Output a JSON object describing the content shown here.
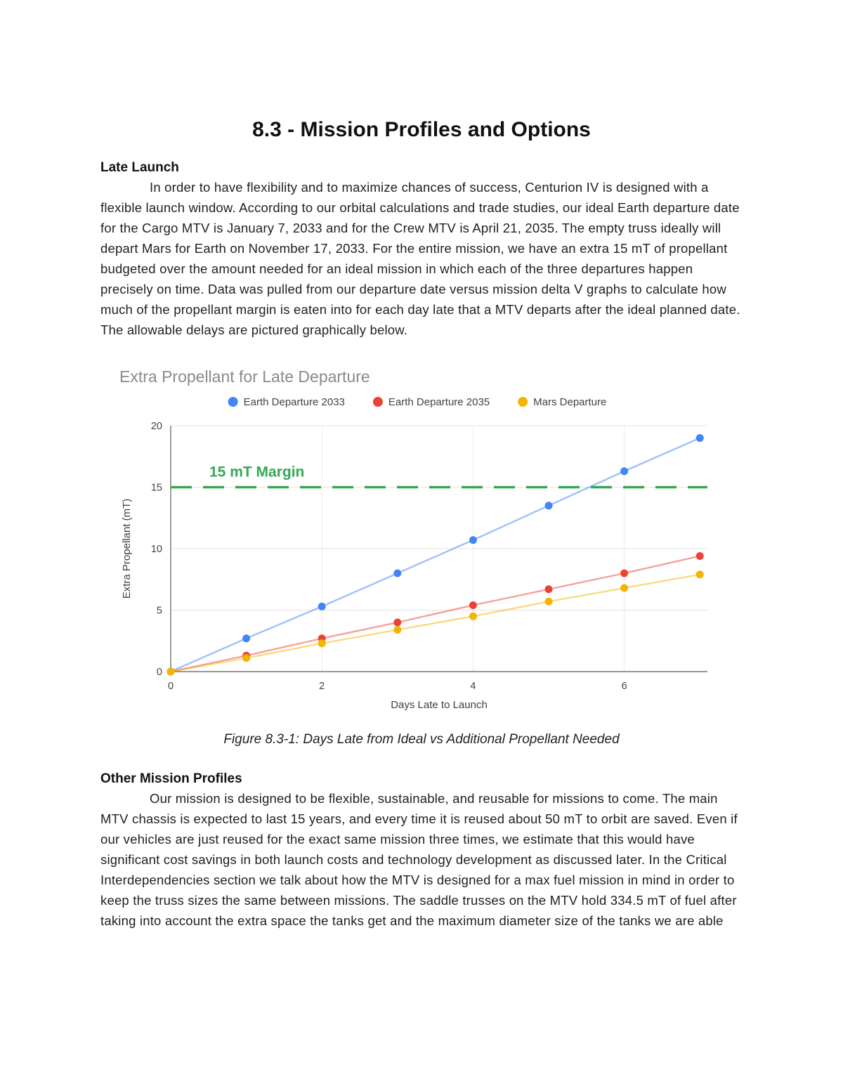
{
  "title": "8.3 - Mission Profiles and Options",
  "late_launch": {
    "heading": "Late Launch",
    "body": "In order to have flexibility and to maximize chances of success, Centurion IV is designed with a flexible launch window. According to our orbital calculations and trade studies, our ideal Earth departure date for the Cargo MTV is January 7, 2033 and for the Crew MTV is April 21, 2035. The empty truss ideally will depart Mars for Earth on November 17, 2033. For the entire mission, we have an extra 15 mT of propellant budgeted over the amount needed for an ideal mission in which each of the three departures happen precisely on time. Data was pulled from our departure date versus mission delta V graphs to calculate how much of the propellant margin is eaten into for each day late that a MTV departs after the ideal planned date. The allowable delays are pictured graphically below."
  },
  "figure_caption": "Figure 8.3-1: Days Late from Ideal vs Additional Propellant Needed",
  "other_profiles": {
    "heading": "Other Mission Profiles",
    "body": "Our mission is designed to be flexible, sustainable, and reusable for missions to come. The main MTV chassis is expected to last 15 years, and every time it is reused about 50 mT to orbit are saved. Even if our vehicles are just reused for the exact same mission three times, we estimate that this would have significant cost savings in both launch costs and technology development as discussed later.  In the Critical Interdependencies section we talk about how the MTV is designed for a max fuel mission in mind in order to keep the truss sizes the same between missions. The saddle trusses on the MTV hold 334.5 mT of fuel after taking into account the extra space the tanks get and the maximum diameter size of the tanks we are able"
  },
  "chart_data": {
    "type": "line",
    "title": "Extra Propellant for Late Departure",
    "xlabel": "Days Late to Launch",
    "ylabel": "Extra Propellant (mT)",
    "x": [
      0,
      1,
      2,
      3,
      4,
      5,
      6,
      7
    ],
    "series": [
      {
        "name": "Earth Departure 2033",
        "color": "#4285F4",
        "values": [
          0,
          2.7,
          5.3,
          8.0,
          10.7,
          13.5,
          16.3,
          19.0
        ]
      },
      {
        "name": "Earth Departure 2035",
        "color": "#EA4335",
        "values": [
          0,
          1.3,
          2.7,
          4.0,
          5.4,
          6.7,
          8.0,
          9.4
        ]
      },
      {
        "name": "Mars Departure",
        "color": "#F4B400",
        "values": [
          0,
          1.1,
          2.3,
          3.4,
          4.5,
          5.7,
          6.8,
          7.9
        ]
      }
    ],
    "margin_line": {
      "value": 15,
      "label": "15 mT Margin",
      "color": "#34A853"
    },
    "xlim": [
      0,
      7.1
    ],
    "ylim": [
      0,
      20
    ],
    "xticks": [
      0,
      2,
      4,
      6
    ],
    "yticks": [
      0,
      5,
      10,
      15,
      20
    ],
    "legend_position": "top",
    "grid": true
  }
}
